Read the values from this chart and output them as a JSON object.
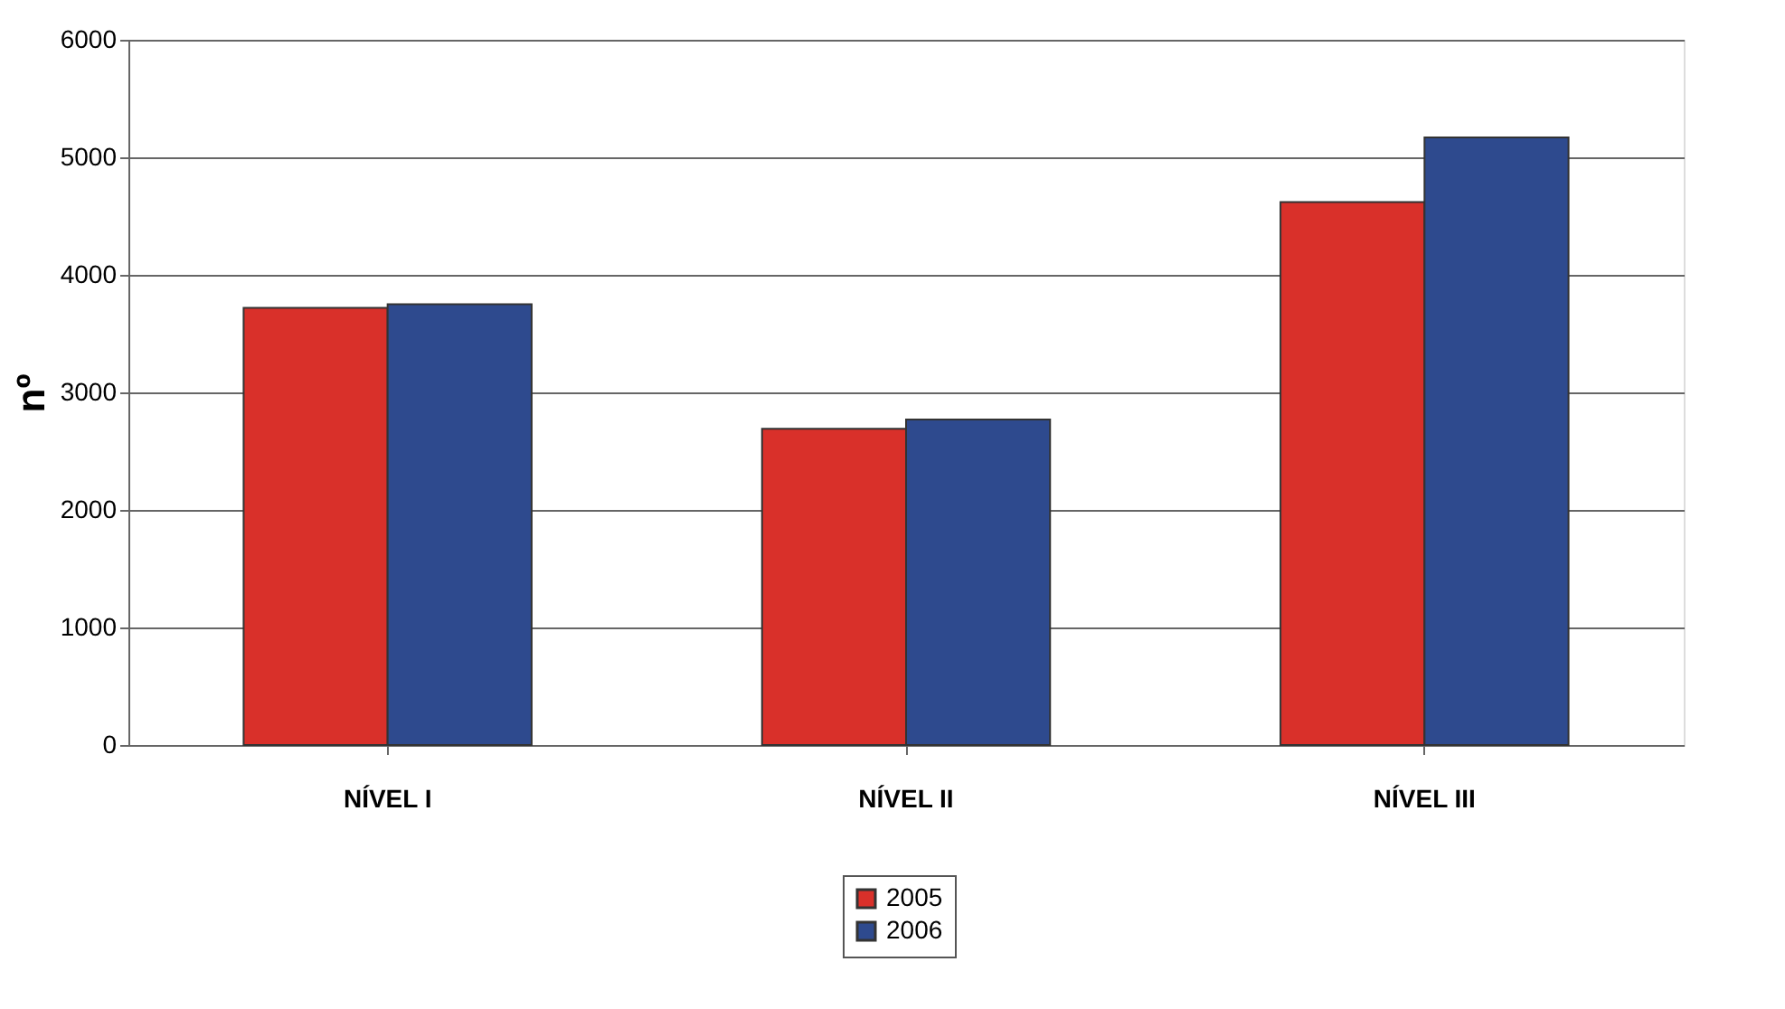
{
  "chart_data": {
    "type": "bar",
    "ylabel": "nº",
    "categories": [
      "NÍVEL I",
      "NÍVEL II",
      "NÍVEL III"
    ],
    "series": [
      {
        "name": "2005",
        "color": "#d9302a",
        "values": [
          3720,
          2690,
          4620
        ]
      },
      {
        "name": "2006",
        "color": "#2e4a8e",
        "values": [
          3750,
          2770,
          5170
        ]
      }
    ],
    "ylim": [
      0,
      6000
    ],
    "yticks": [
      0,
      1000,
      2000,
      3000,
      4000,
      5000,
      6000
    ],
    "grid": "y",
    "legend": "bottom"
  }
}
